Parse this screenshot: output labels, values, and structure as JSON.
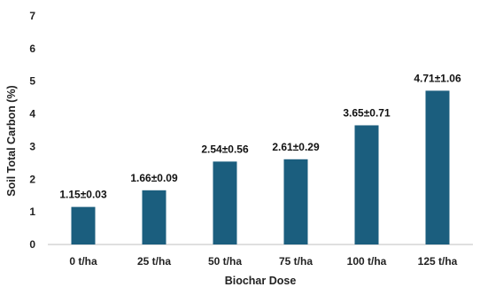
{
  "chart_data": {
    "type": "bar",
    "categories": [
      "0 t/ha",
      "25 t/ha",
      "50 t/ha",
      "75 t/ha",
      "100 t/ha",
      "125 t/ha"
    ],
    "values": [
      1.15,
      1.66,
      2.54,
      2.61,
      3.65,
      4.71
    ],
    "data_labels": [
      "1.15±0.03",
      "1.66±0.09",
      "2.54±0.56",
      "2.61±0.29",
      "3.65±0.71",
      "4.71±1.06"
    ],
    "title": "",
    "xlabel": "Biochar Dose",
    "ylabel": "Soil Total Carbon (%)",
    "ylim": [
      0,
      7
    ],
    "yticks": [
      "0",
      "1",
      "2",
      "3",
      "4",
      "5",
      "6",
      "7"
    ],
    "grid": false,
    "legend": "none",
    "bar_color": "#1b5e7e"
  }
}
